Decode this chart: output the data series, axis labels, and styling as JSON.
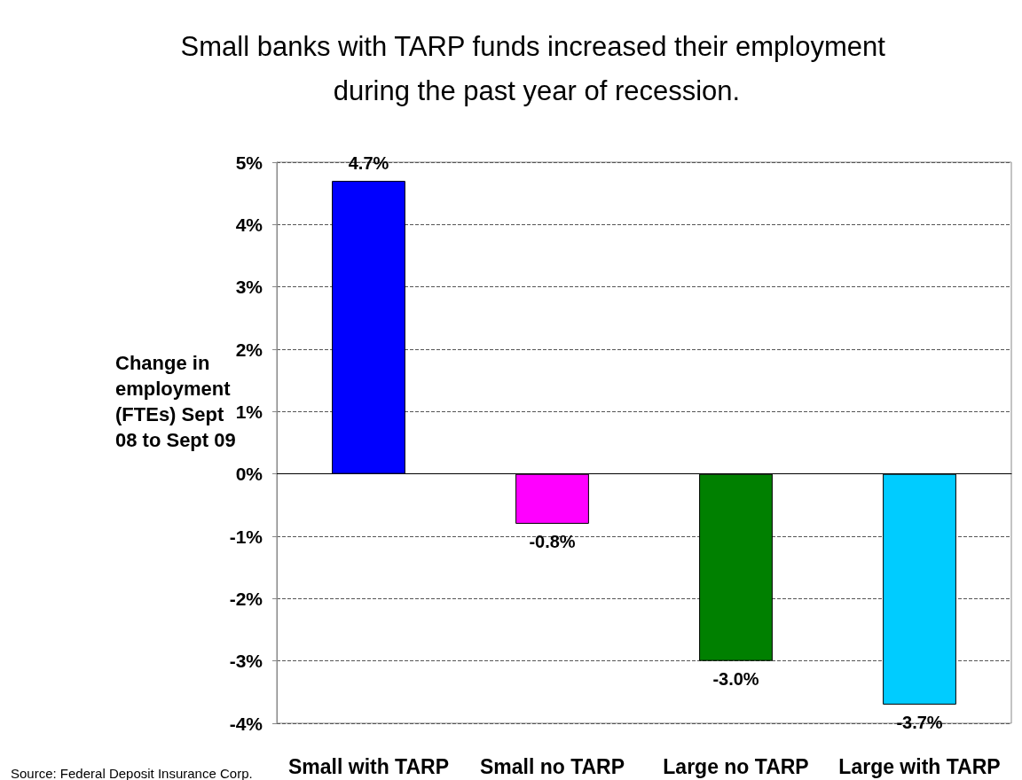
{
  "chart_data": {
    "type": "bar",
    "title": "Small banks with TARP funds increased their employment during the past year of recession.",
    "ylabel": "Change in employment (FTEs) Sept 08 to Sept 09",
    "categories": [
      "Small with TARP",
      "Small no TARP",
      "Large no TARP",
      "Large with TARP"
    ],
    "values": [
      4.7,
      -0.8,
      -3.0,
      -3.7
    ],
    "colors": [
      "#0000ff",
      "#ff00ff",
      "#008000",
      "#00ccff"
    ],
    "value_labels": [
      "4.7%",
      "-0.8%",
      "-3.0%",
      "-3.7%"
    ],
    "ylim": [
      -4,
      5
    ],
    "yticks": [
      {
        "value": -4,
        "label": "-4%"
      },
      {
        "value": -3,
        "label": "-3%"
      },
      {
        "value": -2,
        "label": "-2%"
      },
      {
        "value": -1,
        "label": "-1%"
      },
      {
        "value": 0,
        "label": "0%"
      },
      {
        "value": 1,
        "label": "1%"
      },
      {
        "value": 2,
        "label": "2%"
      },
      {
        "value": 3,
        "label": "3%"
      },
      {
        "value": 4,
        "label": "4%"
      },
      {
        "value": 5,
        "label": "5%"
      }
    ],
    "grid": "y",
    "annotations": [
      "Source: Federal Deposit Insurance Corp."
    ]
  }
}
